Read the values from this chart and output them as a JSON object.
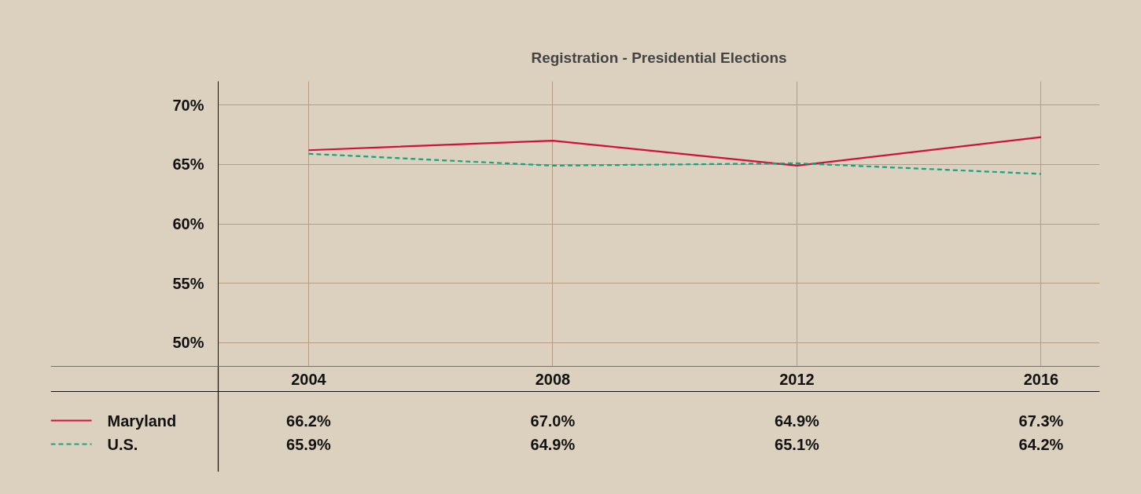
{
  "chart_data": {
    "type": "line",
    "title": "Registration - Presidential Elections",
    "categories": [
      "2004",
      "2008",
      "2012",
      "2016"
    ],
    "series": [
      {
        "name": "Maryland",
        "color": "#d0103a",
        "line_style": "solid",
        "values": [
          66.2,
          67.0,
          64.9,
          67.3
        ],
        "value_labels": [
          "66.2%",
          "67.0%",
          "64.9%",
          "67.3%"
        ]
      },
      {
        "name": "U.S.",
        "color": "#12a37f",
        "line_style": "dashed",
        "values": [
          65.9,
          64.9,
          65.1,
          64.2
        ],
        "value_labels": [
          "65.9%",
          "64.9%",
          "65.1%",
          "64.2%"
        ]
      }
    ],
    "ylim": [
      48,
      72
    ],
    "yticks": [
      {
        "value": 50,
        "label": "50%"
      },
      {
        "value": 55,
        "label": "55%"
      },
      {
        "value": 60,
        "label": "60%"
      },
      {
        "value": 65,
        "label": "65%"
      },
      {
        "value": 70,
        "label": "70%"
      }
    ],
    "grid": true,
    "legend": "bottom",
    "marker": "none"
  }
}
